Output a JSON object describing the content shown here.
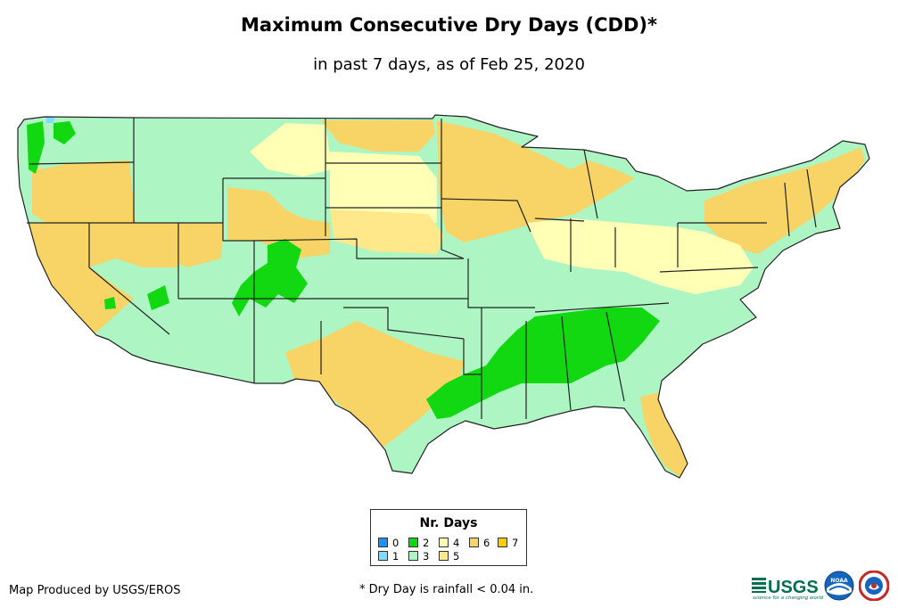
{
  "header": {
    "title": "Maximum Consecutive Dry Days (CDD)*",
    "subtitle": "in past 7 days, as of Feb 25, 2020"
  },
  "legend": {
    "title": "Nr. Days",
    "items": [
      {
        "label": "0",
        "color": "#1e90ff"
      },
      {
        "label": "1",
        "color": "#7fdcff"
      },
      {
        "label": "2",
        "color": "#11d811"
      },
      {
        "label": "3",
        "color": "#aef5c4"
      },
      {
        "label": "4",
        "color": "#ffffb5"
      },
      {
        "label": "5",
        "color": "#ffe88a"
      },
      {
        "label": "6",
        "color": "#f7d465"
      },
      {
        "label": "7",
        "color": "#ffcc00"
      }
    ]
  },
  "footer": {
    "credit": "Map Produced by USGS/EROS",
    "footnote": "* Dry Day is rainfall < 0.04 in.",
    "usgs_text": "USGS",
    "usgs_tagline": "science for a changing world",
    "noaa_text": "NOAA"
  },
  "colors": {
    "boundary": "#222222",
    "usgs_green": "#00704a",
    "noaa_blue": "#1565c0"
  }
}
